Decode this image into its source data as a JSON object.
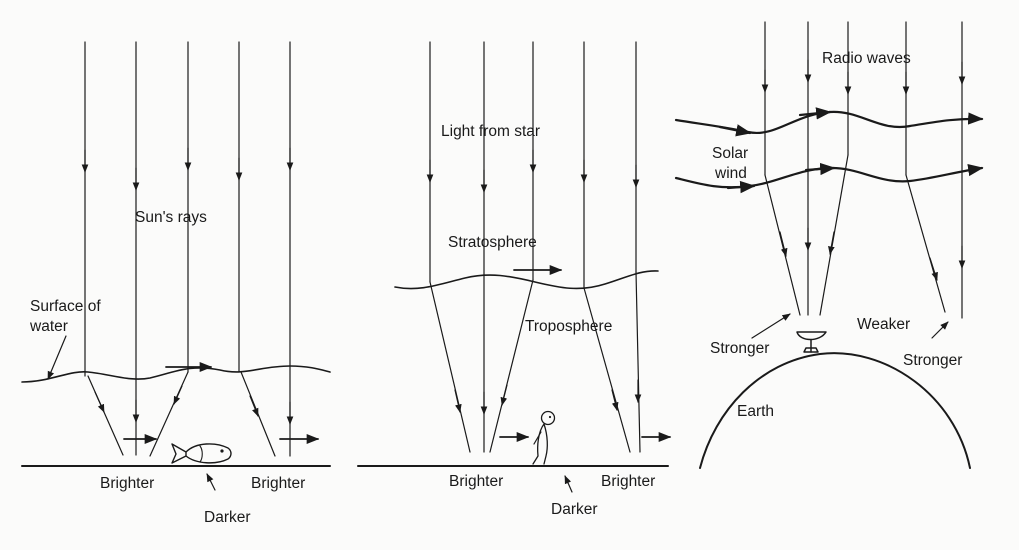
{
  "panels": [
    {
      "labels": {
        "suns_rays": "Sun's rays",
        "surface_line1": "Surface of",
        "surface_line2": "water",
        "brighter_left": "Brighter",
        "brighter_right": "Brighter",
        "darker": "Darker"
      },
      "icons": [
        "fish-icon"
      ]
    },
    {
      "labels": {
        "light_from_star": "Light from star",
        "stratosphere": "Stratosphere",
        "troposphere": "Troposphere",
        "brighter_left": "Brighter",
        "brighter_right": "Brighter",
        "darker": "Darker"
      },
      "icons": [
        "person-icon"
      ]
    },
    {
      "labels": {
        "radio_waves": "Radio waves",
        "solar_line1": "Solar",
        "solar_line2": "wind",
        "stronger_left": "Stronger",
        "weaker": "Weaker",
        "stronger_right": "Stronger",
        "earth": "Earth"
      },
      "icons": [
        "radio-dish-icon"
      ]
    }
  ],
  "colors": {
    "ink": "#1a1a1a",
    "paper": "#fbfbfa"
  }
}
